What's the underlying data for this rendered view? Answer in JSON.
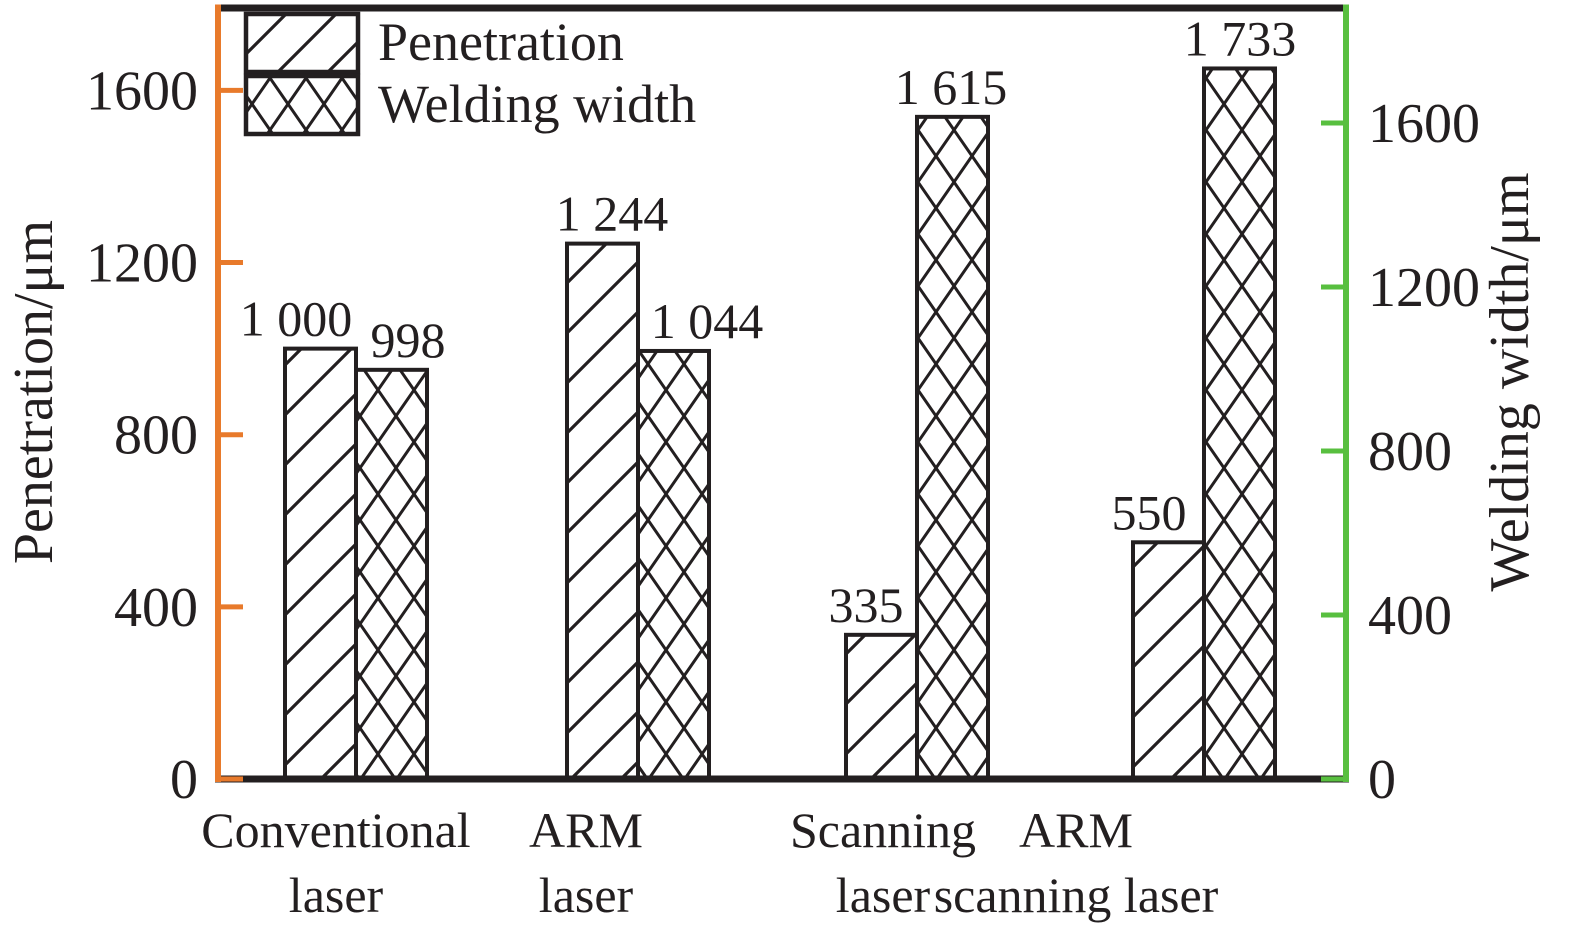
{
  "chart_data": {
    "type": "bar",
    "title": "",
    "categories": [
      {
        "line1": "Conventional",
        "line2": "laser"
      },
      {
        "line1": "ARM",
        "line2": "laser"
      },
      {
        "line1": "Scanning",
        "line2": "laser"
      },
      {
        "line1": "ARM",
        "line2": "scanning laser"
      }
    ],
    "series": [
      {
        "name": "Penetration",
        "axis": "left",
        "hatch": "diagonal",
        "values": [
          1000,
          1244,
          335,
          550
        ],
        "value_labels": [
          "1 000",
          "1 244",
          "335",
          "550"
        ]
      },
      {
        "name": "Welding width",
        "axis": "right",
        "hatch": "crosshatch",
        "values": [
          998,
          1044,
          1615,
          1733
        ],
        "value_labels": [
          "998",
          "1 044",
          "1 615",
          "1 733"
        ]
      }
    ],
    "left_axis": {
      "title": "Penetration/μm",
      "tick_labels": [
        "0",
        "400",
        "800",
        "1200",
        "1600"
      ],
      "tick_values": [
        0,
        400,
        800,
        1200,
        1600
      ],
      "range": [
        0,
        1814
      ],
      "color": "#e87a2b"
    },
    "right_axis": {
      "title": "Welding width/μm",
      "tick_labels": [
        "0",
        "400",
        "800",
        "1200",
        "1600"
      ],
      "tick_values": [
        0,
        400,
        800,
        1200,
        1600
      ],
      "range": [
        0,
        1880
      ],
      "color": "#58bf3f"
    },
    "legend": {
      "position": "top-left",
      "entries": [
        "Penetration",
        "Welding width"
      ]
    },
    "grid": false,
    "bar_fill": "#ffffff",
    "outline_color": "#231f20"
  }
}
